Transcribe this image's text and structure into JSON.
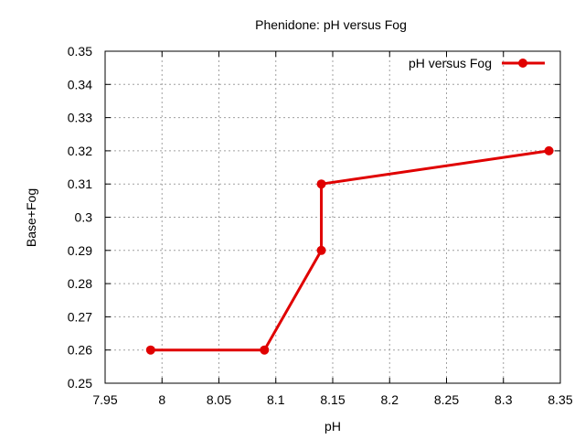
{
  "chart_data": {
    "type": "line",
    "title": "Phenidone: pH versus Fog",
    "xlabel": "pH",
    "ylabel": "Base+Fog",
    "xlim": [
      7.95,
      8.35
    ],
    "ylim": [
      0.25,
      0.35
    ],
    "xticks": [
      "7.95",
      "8",
      "8.05",
      "8.1",
      "8.15",
      "8.2",
      "8.25",
      "8.3",
      "8.35"
    ],
    "yticks": [
      "0.25",
      "0.26",
      "0.27",
      "0.28",
      "0.29",
      "0.3",
      "0.31",
      "0.32",
      "0.33",
      "0.34",
      "0.35"
    ],
    "grid": true,
    "legend_position": "top-right",
    "series": [
      {
        "name": "pH versus Fog",
        "color": "#e00000",
        "marker": "circle",
        "x": [
          7.99,
          8.09,
          8.14,
          8.14,
          8.34
        ],
        "y": [
          0.26,
          0.26,
          0.29,
          0.31,
          0.32
        ]
      }
    ]
  }
}
